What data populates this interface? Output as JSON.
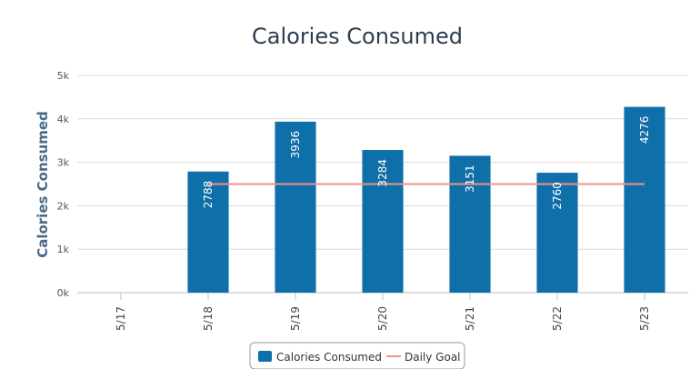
{
  "chart_data": {
    "type": "bar",
    "title": "Calories Consumed",
    "xlabel": "",
    "ylabel": "Calories Consumed",
    "categories": [
      "5/17",
      "5/18",
      "5/19",
      "5/20",
      "5/21",
      "5/22",
      "5/23"
    ],
    "ylim": [
      0,
      5000
    ],
    "yticks": [
      0,
      1000,
      2000,
      3000,
      4000,
      5000
    ],
    "ytick_labels": [
      "0k",
      "1k",
      "2k",
      "3k",
      "4k",
      "5k"
    ],
    "series": [
      {
        "name": "Calories Consumed",
        "type": "bar",
        "color": "#0f6fa8",
        "values": [
          null,
          2788,
          3936,
          3284,
          3151,
          2760,
          4276
        ],
        "data_labels": [
          "",
          "2788",
          "3936",
          "3284",
          "3151",
          "2760",
          "4276"
        ]
      },
      {
        "name": "Daily Goal",
        "type": "line",
        "color": "#f4908a",
        "values": [
          null,
          2500,
          2500,
          2500,
          2500,
          2500,
          2500
        ]
      }
    ],
    "grid": true,
    "legend_position": "bottom-center"
  }
}
